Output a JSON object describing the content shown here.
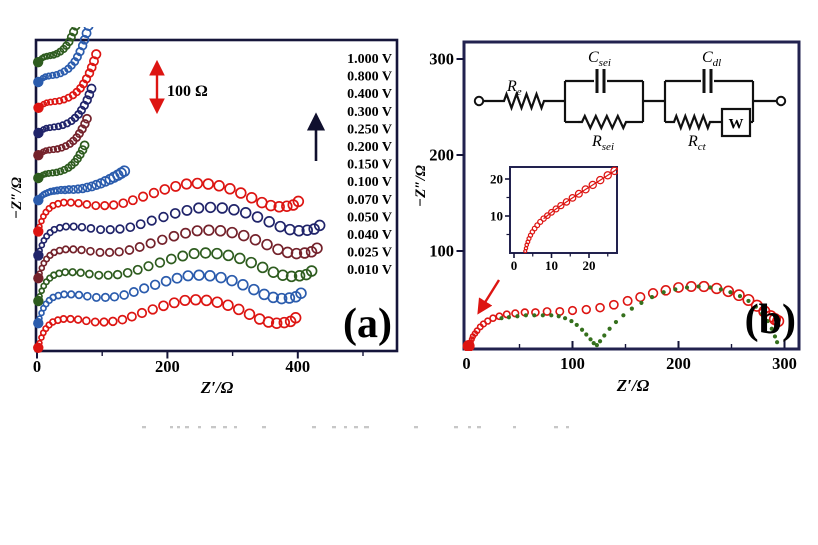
{
  "chart_data": [
    {
      "id": "panel_a",
      "type": "scatter",
      "corner_label": "(a)",
      "xlabel": "Z′/Ω",
      "ylabel": "−Z″/Ω",
      "xlim": [
        0,
        555
      ],
      "x_ticks": [
        0,
        200,
        400
      ],
      "x_minor_ticks": [
        100,
        300,
        500
      ],
      "y_ticks": [],
      "annotations": {
        "scale_arrow_label": "100 Ω",
        "scale_arrow_ohms": 100,
        "direction_arrow": "up"
      },
      "legend": [
        "1.000 V",
        "0.800 V",
        "0.400 V",
        "0.300 V",
        "0.250 V",
        "0.200 V",
        "0.150 V",
        "0.100 V",
        "0.070 V",
        "0.050 V",
        "0.040 V",
        "0.025 V",
        "0.010 V"
      ],
      "palette": {
        "red": "#dd1512",
        "blue": "#2b5cad",
        "green": "#2e5c1f",
        "maroon": "#74222b",
        "navy": "#20246a"
      },
      "base_shapes": {
        "long": [
          [
            2,
            0
          ],
          [
            4,
            8
          ],
          [
            7,
            17
          ],
          [
            10,
            25
          ],
          [
            14,
            32
          ],
          [
            19,
            38
          ],
          [
            25,
            43
          ],
          [
            33,
            46
          ],
          [
            42,
            48
          ],
          [
            53,
            48
          ],
          [
            65,
            47
          ],
          [
            78,
            45
          ],
          [
            92,
            43
          ],
          [
            106,
            43
          ],
          [
            120,
            44
          ],
          [
            135,
            47
          ],
          [
            150,
            52
          ],
          [
            166,
            58
          ],
          [
            183,
            64
          ],
          [
            200,
            70
          ],
          [
            217,
            75
          ],
          [
            234,
            79
          ],
          [
            251,
            80
          ],
          [
            268,
            79
          ],
          [
            285,
            76
          ],
          [
            302,
            71
          ],
          [
            319,
            64
          ],
          [
            336,
            56
          ],
          [
            352,
            48
          ],
          [
            366,
            43
          ],
          [
            379,
            41
          ],
          [
            391,
            42
          ],
          [
            401,
            44
          ],
          [
            409,
            50
          ]
        ],
        "mid": [
          [
            2,
            0
          ],
          [
            4,
            4
          ],
          [
            7,
            8
          ],
          [
            10,
            11
          ],
          [
            13,
            13
          ],
          [
            17,
            15
          ],
          [
            21,
            17
          ],
          [
            26,
            18
          ],
          [
            31,
            19
          ],
          [
            37,
            20
          ],
          [
            43,
            20
          ],
          [
            49,
            21
          ],
          [
            56,
            21
          ],
          [
            63,
            22
          ],
          [
            70,
            23
          ],
          [
            77,
            25
          ],
          [
            84,
            27
          ],
          [
            91,
            30
          ],
          [
            98,
            33
          ],
          [
            105,
            37
          ],
          [
            112,
            41
          ],
          [
            118,
            45
          ],
          [
            124,
            49
          ],
          [
            129,
            53
          ],
          [
            134,
            57
          ]
        ],
        "short": [
          [
            2,
            0
          ],
          [
            5,
            3
          ],
          [
            9,
            6
          ],
          [
            13,
            8
          ],
          [
            18,
            9
          ],
          [
            24,
            10
          ],
          [
            30,
            11
          ],
          [
            36,
            13
          ],
          [
            42,
            16
          ],
          [
            48,
            20
          ],
          [
            53,
            25
          ],
          [
            58,
            31
          ],
          [
            62,
            38
          ],
          [
            66,
            46
          ],
          [
            70,
            55
          ],
          [
            73,
            64
          ],
          [
            76,
            74
          ],
          [
            79,
            85
          ],
          [
            82,
            97
          ],
          [
            85,
            110
          ],
          [
            88,
            124
          ]
        ]
      },
      "series": [
        {
          "voltage": "0.010 V",
          "color_key": "red",
          "shape": "long",
          "y_offset": 2,
          "x_scale": 0.97,
          "y_scale": 1,
          "n_points": 34
        },
        {
          "voltage": "0.025 V",
          "color_key": "blue",
          "shape": "long",
          "y_offset": 43,
          "x_scale": 0.99,
          "y_scale": 1,
          "n_points": 34
        },
        {
          "voltage": "0.040 V",
          "color_key": "green",
          "shape": "long",
          "y_offset": 80,
          "x_scale": 1.03,
          "y_scale": 1,
          "n_points": 34
        },
        {
          "voltage": "0.050 V",
          "color_key": "maroon",
          "shape": "long",
          "y_offset": 118,
          "x_scale": 1.05,
          "y_scale": 1,
          "n_points": 34
        },
        {
          "voltage": "0.070 V",
          "color_key": "navy",
          "shape": "long",
          "y_offset": 156,
          "x_scale": 1.06,
          "y_scale": 1,
          "n_points": 34
        },
        {
          "voltage": "0.100 V",
          "color_key": "red",
          "shape": "long",
          "y_offset": 196,
          "x_scale": 0.98,
          "y_scale": 1,
          "n_points": 34
        },
        {
          "voltage": "0.150 V",
          "color_key": "blue",
          "shape": "mid",
          "y_offset": 248,
          "x_scale": 1,
          "y_scale": 0.85,
          "n_points": 25
        },
        {
          "voltage": "0.200 V",
          "color_key": "green",
          "shape": "short",
          "y_offset": 285,
          "x_scale": 1,
          "y_scale": 0.85,
          "n_points": 16
        },
        {
          "voltage": "0.250 V",
          "color_key": "maroon",
          "shape": "short",
          "y_offset": 323,
          "x_scale": 1.05,
          "y_scale": 0.95,
          "n_points": 16
        },
        {
          "voltage": "0.300 V",
          "color_key": "navy",
          "shape": "short",
          "y_offset": 360,
          "x_scale": 1.1,
          "y_scale": 1,
          "n_points": 17
        },
        {
          "voltage": "0.400 V",
          "color_key": "red",
          "shape": "short",
          "y_offset": 402,
          "x_scale": 1.15,
          "y_scale": 1.05,
          "n_points": 18
        },
        {
          "voltage": "0.800 V",
          "color_key": "blue",
          "shape": "short",
          "y_offset": 445,
          "x_scale": 1,
          "y_scale": 1.1,
          "n_points": 19
        },
        {
          "voltage": "1.000 V",
          "color_key": "green",
          "shape": "short",
          "y_offset": 478,
          "x_scale": 0.85,
          "y_scale": 1.1,
          "n_points": 20
        }
      ]
    },
    {
      "id": "panel_b",
      "type": "scatter",
      "corner_label": "(b)",
      "xlabel": "Z′/Ω",
      "ylabel": "−Z″/Ω",
      "x_ticks": [
        0,
        100,
        200,
        300
      ],
      "x_minor_ticks": [
        50,
        150,
        250
      ],
      "y_ticks": [
        100,
        200,
        300
      ],
      "series": [
        {
          "name": "measured",
          "marker": "open-circle",
          "color": "#dd1512",
          "points": [
            [
              2,
              1
            ],
            [
              3,
              3
            ],
            [
              4,
              5
            ],
            [
              5,
              8
            ],
            [
              6,
              11
            ],
            [
              8,
              14
            ],
            [
              10,
              17
            ],
            [
              13,
              21
            ],
            [
              16,
              24
            ],
            [
              20,
              27
            ],
            [
              25,
              30
            ],
            [
              31,
              32
            ],
            [
              38,
              34
            ],
            [
              46,
              35
            ],
            [
              55,
              36
            ],
            [
              65,
              36
            ],
            [
              76,
              37
            ],
            [
              88,
              37
            ],
            [
              100,
              38
            ],
            [
              113,
              39
            ],
            [
              126,
              41
            ],
            [
              139,
              44
            ],
            [
              152,
              48
            ],
            [
              164,
              52
            ],
            [
              176,
              56
            ],
            [
              188,
              59
            ],
            [
              200,
              62
            ],
            [
              212,
              63
            ],
            [
              224,
              63
            ],
            [
              236,
              61
            ],
            [
              247,
              58
            ],
            [
              257,
              54
            ],
            [
              266,
              49
            ],
            [
              274,
              43
            ],
            [
              281,
              37
            ],
            [
              287,
              32
            ],
            [
              291,
              29
            ],
            [
              294,
              27
            ]
          ]
        },
        {
          "name": "fit",
          "marker": "dotted",
          "color": "#35701d",
          "points": [
            [
              33,
              30
            ],
            [
              40,
              31
            ],
            [
              48,
              32
            ],
            [
              56,
              33
            ],
            [
              64,
              33
            ],
            [
              72,
              33
            ],
            [
              80,
              33
            ],
            [
              87,
              32
            ],
            [
              93,
              30
            ],
            [
              99,
              27
            ],
            [
              104,
              23
            ],
            [
              109,
              18
            ],
            [
              113,
              13
            ],
            [
              117,
              8
            ],
            [
              120,
              4
            ],
            [
              123,
              2
            ],
            [
              126,
              6
            ],
            [
              130,
              12
            ],
            [
              135,
              19
            ],
            [
              141,
              26
            ],
            [
              148,
              33
            ],
            [
              156,
              40
            ],
            [
              165,
              46
            ],
            [
              175,
              52
            ],
            [
              186,
              57
            ],
            [
              197,
              60
            ],
            [
              208,
              62
            ],
            [
              219,
              63
            ],
            [
              230,
              62
            ],
            [
              240,
              60
            ],
            [
              249,
              57
            ],
            [
              258,
              53
            ],
            [
              266,
              48
            ],
            [
              273,
              42
            ],
            [
              279,
              35
            ],
            [
              284,
              27
            ],
            [
              288,
              19
            ],
            [
              291,
              11
            ],
            [
              293,
              5
            ]
          ]
        }
      ],
      "inset": {
        "x_ticks": [
          0,
          10,
          20
        ],
        "x_minor_ticks": [
          5,
          15,
          25
        ],
        "y_ticks": [
          10,
          20
        ],
        "y_minor_ticks": [
          5,
          15
        ],
        "series": {
          "name": "measured",
          "color": "#dd1512",
          "points": [
            [
              3,
              0.5
            ],
            [
              3.2,
              1.3
            ],
            [
              3.4,
              2.2
            ],
            [
              3.7,
              3
            ],
            [
              4,
              3.9
            ],
            [
              4.4,
              4.8
            ],
            [
              4.9,
              5.7
            ],
            [
              5.5,
              6.6
            ],
            [
              6.2,
              7.5
            ],
            [
              7,
              8.4
            ],
            [
              7.9,
              9.3
            ],
            [
              8.9,
              10.1
            ],
            [
              10,
              11
            ],
            [
              11.2,
              11.9
            ],
            [
              12.5,
              12.8
            ],
            [
              14,
              13.8
            ],
            [
              15.6,
              14.9
            ],
            [
              17.3,
              16
            ],
            [
              19.1,
              17.2
            ],
            [
              21,
              18.4
            ],
            [
              23,
              19.7
            ],
            [
              25,
              21
            ],
            [
              26.8,
              22.2
            ]
          ]
        }
      },
      "circuit": {
        "elements": [
          {
            "symbol": "resistor",
            "label_main": "R",
            "label_sub": "e"
          },
          {
            "symbol": "capacitor",
            "label_main": "C",
            "label_sub": "sei"
          },
          {
            "symbol": "resistor",
            "label_main": "R",
            "label_sub": "sei"
          },
          {
            "symbol": "capacitor",
            "label_main": "C",
            "label_sub": "dl"
          },
          {
            "symbol": "resistor",
            "label_main": "R",
            "label_sub": "ct"
          },
          {
            "symbol": "warburg",
            "label_main": "W",
            "label_sub": ""
          }
        ]
      }
    }
  ]
}
